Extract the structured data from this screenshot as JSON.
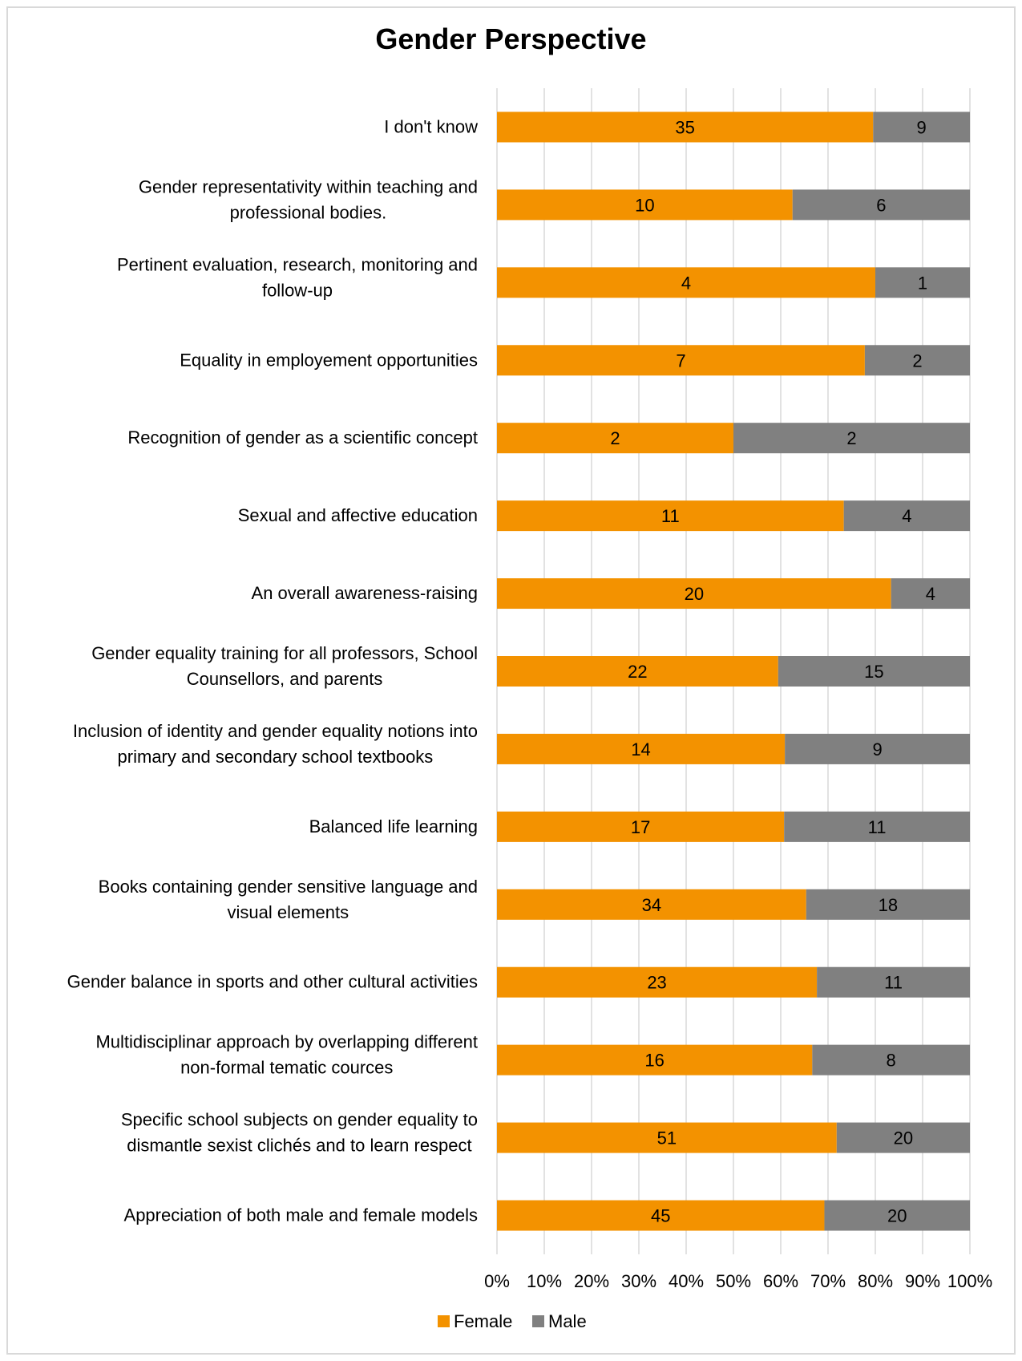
{
  "chart_data": {
    "type": "bar",
    "orientation": "horizontal",
    "stacking": "percent",
    "title": "Gender Perspective",
    "categories": [
      [
        "I don't know"
      ],
      [
        "Gender representativity within teaching and",
        "professional bodies."
      ],
      [
        "Pertinent evaluation, research, monitoring and",
        "follow-up"
      ],
      [
        "Equality in employement opportunities"
      ],
      [
        "Recognition of gender as a scientific concept"
      ],
      [
        "Sexual and affective education"
      ],
      [
        "An overall awareness-raising"
      ],
      [
        "Gender equality training for all professors, School",
        "Counsellors, and parents"
      ],
      [
        "Inclusion of identity and gender equality notions into",
        "primary and secondary school textbooks"
      ],
      [
        "Balanced life learning"
      ],
      [
        "Books containing  gender sensitive language and",
        "visual  elements"
      ],
      [
        "Gender balance in sports and other cultural activities"
      ],
      [
        "Multidisciplinar approach by overlapping different",
        "non-formal tematic cources"
      ],
      [
        "Specific school subjects on gender equality to",
        "dismantle sexist clichés and to learn respect"
      ],
      [
        "Appreciation of both male and female models"
      ]
    ],
    "series": [
      {
        "name": "Female",
        "color": "#f39200",
        "values": [
          35,
          10,
          4,
          7,
          2,
          11,
          20,
          22,
          14,
          17,
          34,
          23,
          16,
          51,
          45
        ]
      },
      {
        "name": "Male",
        "color": "#808080",
        "values": [
          9,
          6,
          1,
          2,
          2,
          4,
          4,
          15,
          9,
          11,
          18,
          11,
          8,
          20,
          20
        ]
      }
    ],
    "xticks": [
      "0%",
      "10%",
      "20%",
      "30%",
      "40%",
      "50%",
      "60%",
      "70%",
      "80%",
      "90%",
      "100%"
    ],
    "xlim": [
      0,
      100
    ],
    "grid": true,
    "legend": "bottom"
  }
}
